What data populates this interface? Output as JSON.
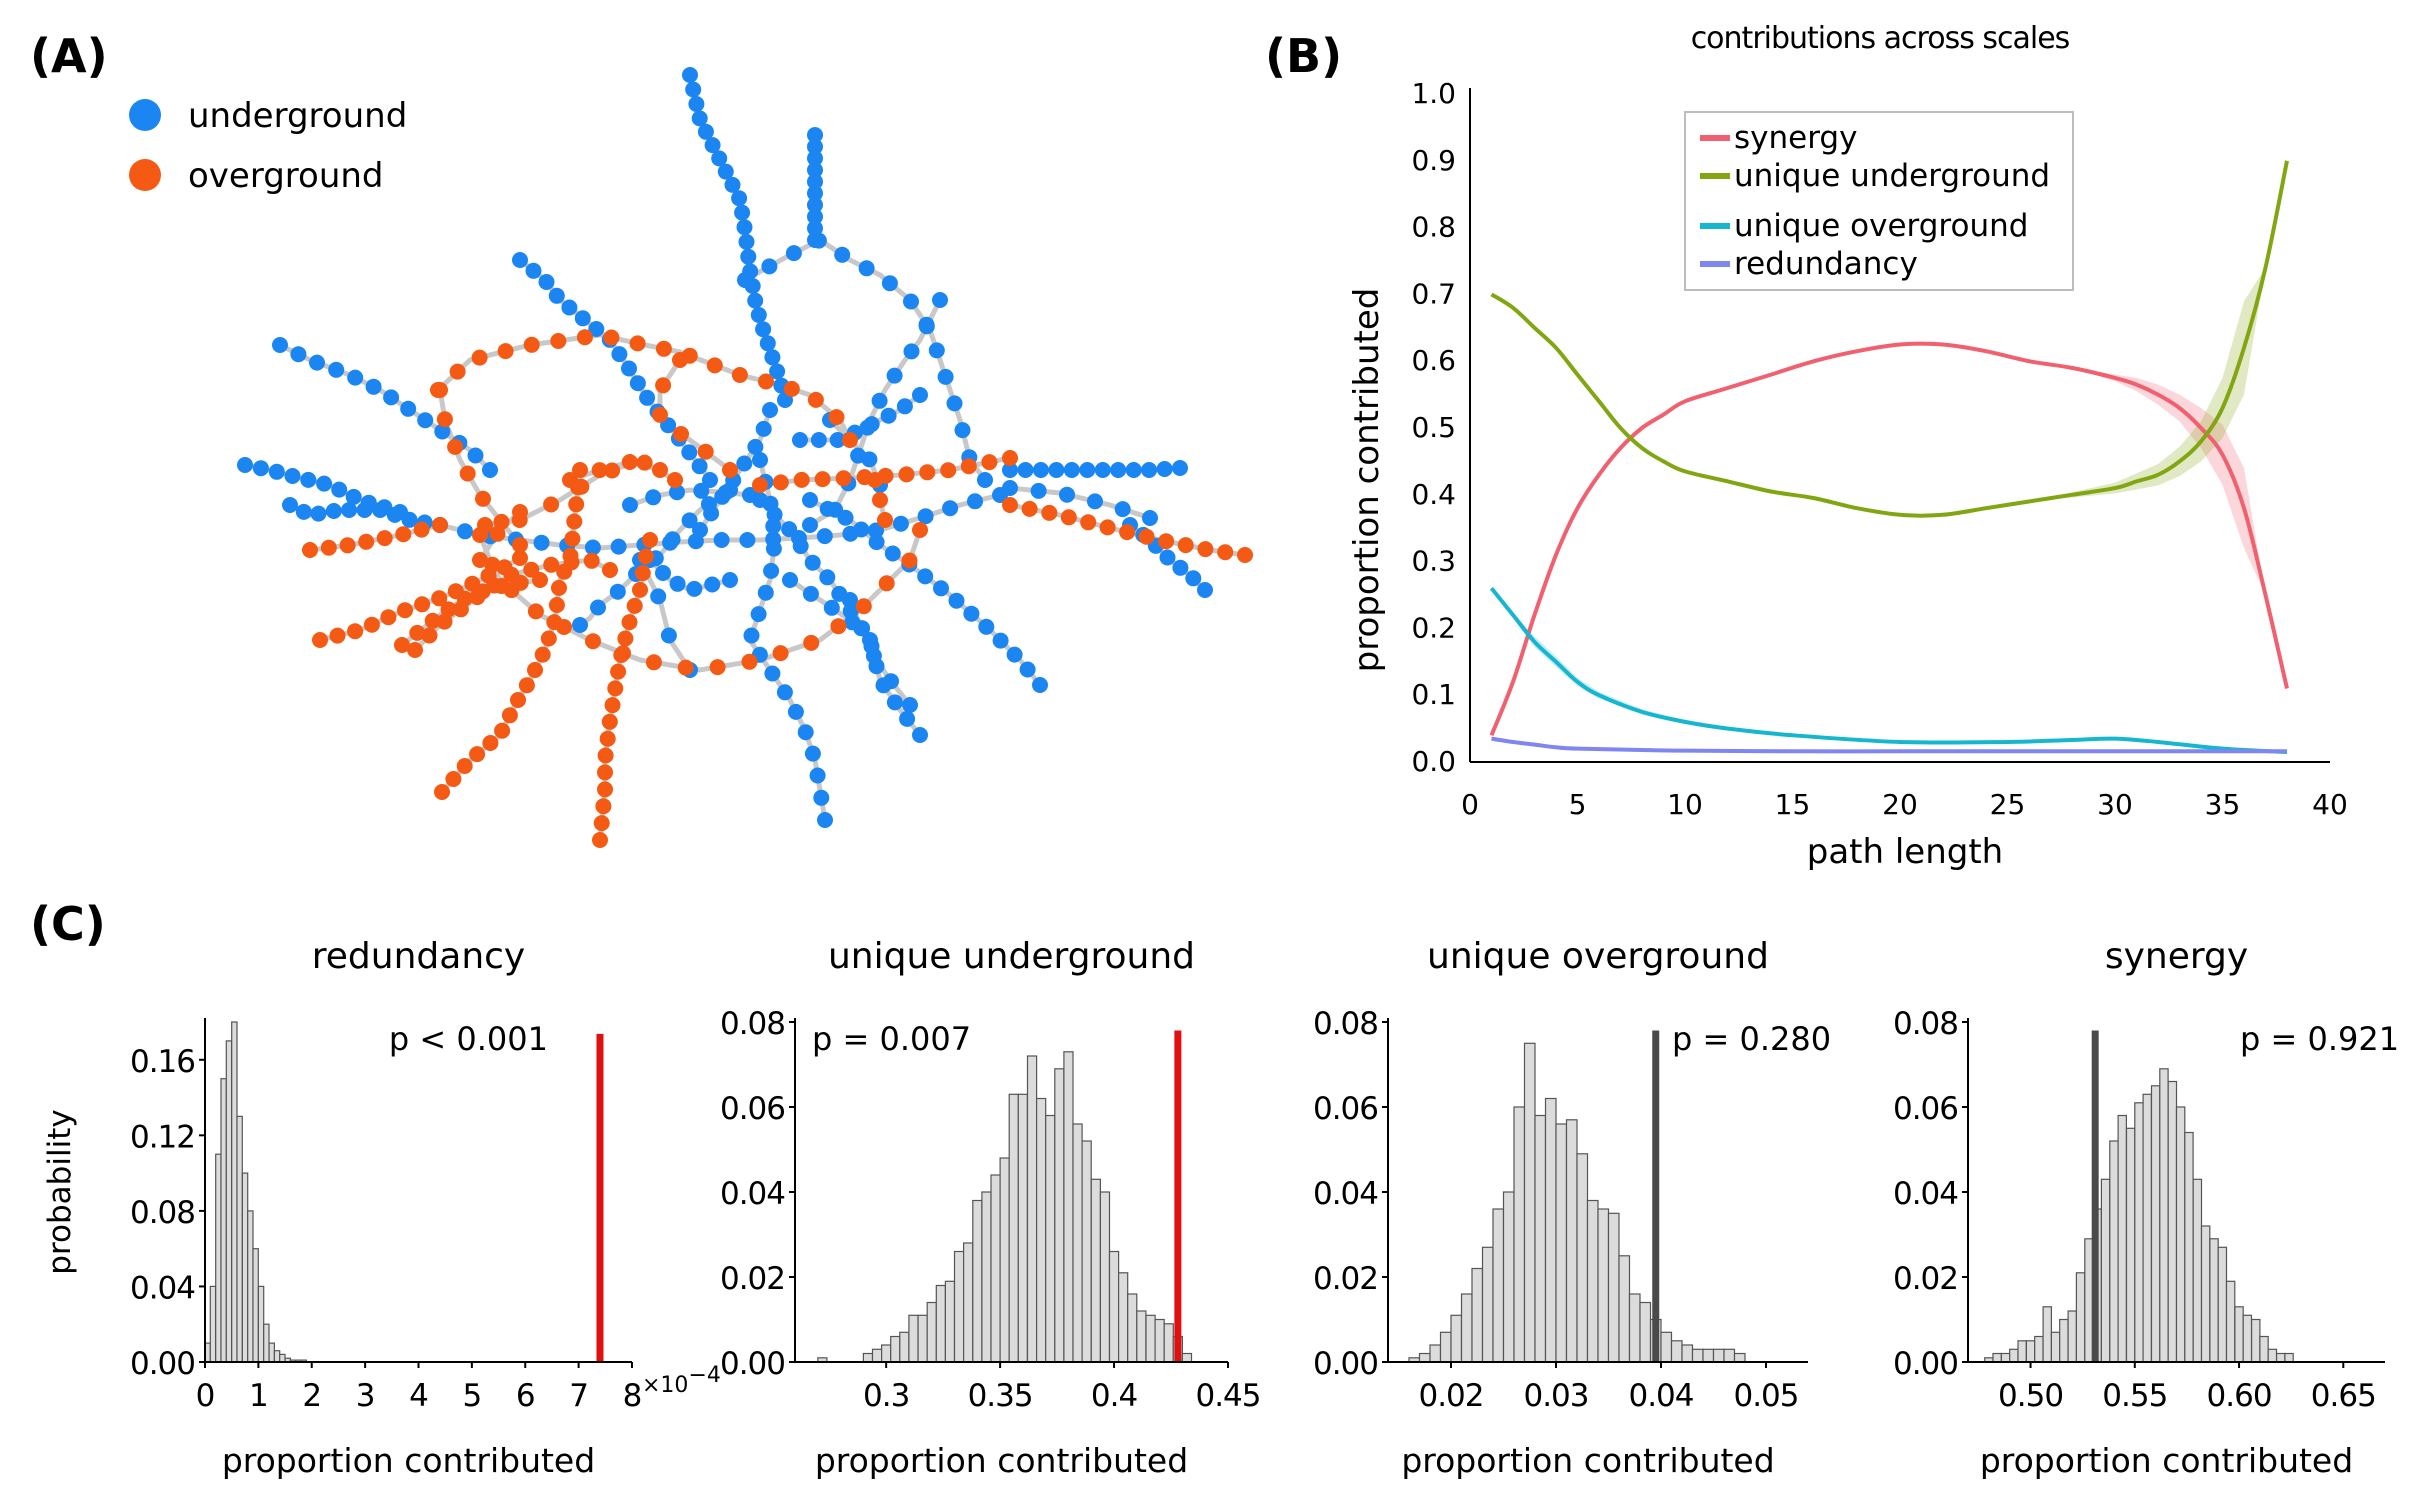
{
  "panels": {
    "a_label": "(A)",
    "b_label": "(B)",
    "c_label": "(C)"
  },
  "network": {
    "legend": [
      {
        "name": "underground",
        "color": "#1b86f2"
      },
      {
        "name": "overground",
        "color": "#f45a14"
      }
    ],
    "edge_color": "#c8c8c8"
  },
  "chart_data": [
    {
      "type": "line",
      "title": "contributions across scales",
      "xlabel": "path length",
      "ylabel": "proportion contributed",
      "xlim": [
        0,
        40
      ],
      "ylim": [
        0,
        1
      ],
      "xticks": [
        0,
        5,
        10,
        15,
        20,
        25,
        30,
        35,
        40
      ],
      "yticks": [
        "0.0",
        "0.1",
        "0.2",
        "0.3",
        "0.4",
        "0.5",
        "0.6",
        "0.7",
        "0.8",
        "0.9",
        "1.0"
      ],
      "legend_position": "top-right",
      "series": [
        {
          "name": "synergy",
          "color": "#f0606e",
          "x": [
            1,
            2,
            3,
            4,
            5,
            6,
            7,
            8,
            9,
            10,
            12,
            14,
            16,
            18,
            20,
            22,
            24,
            26,
            28,
            30,
            31,
            32,
            33,
            34,
            35,
            36,
            37,
            38
          ],
          "y": [
            0.04,
            0.12,
            0.22,
            0.31,
            0.38,
            0.43,
            0.47,
            0.5,
            0.52,
            0.54,
            0.56,
            0.58,
            0.6,
            0.615,
            0.625,
            0.625,
            0.615,
            0.6,
            0.59,
            0.575,
            0.565,
            0.55,
            0.53,
            0.5,
            0.46,
            0.38,
            0.25,
            0.11
          ],
          "band": [
            0,
            0,
            0,
            0,
            0,
            0,
            0,
            0,
            0,
            0,
            0,
            0,
            0,
            0,
            0,
            0,
            0,
            0,
            0,
            0.005,
            0.01,
            0.015,
            0.02,
            0.03,
            0.045,
            0.06,
            0,
            0
          ]
        },
        {
          "name": "unique underground",
          "color": "#82a612",
          "x": [
            1,
            2,
            3,
            4,
            5,
            6,
            7,
            8,
            9,
            10,
            12,
            14,
            16,
            18,
            20,
            22,
            24,
            26,
            28,
            30,
            31,
            32,
            33,
            34,
            35,
            36,
            37,
            38
          ],
          "y": [
            0.7,
            0.68,
            0.65,
            0.62,
            0.58,
            0.54,
            0.5,
            0.47,
            0.45,
            0.435,
            0.42,
            0.405,
            0.395,
            0.38,
            0.37,
            0.37,
            0.38,
            0.39,
            0.4,
            0.41,
            0.42,
            0.43,
            0.45,
            0.48,
            0.53,
            0.62,
            0.74,
            0.9
          ],
          "band": [
            0,
            0,
            0,
            0,
            0,
            0,
            0,
            0,
            0,
            0,
            0,
            0,
            0,
            0,
            0,
            0,
            0,
            0,
            0.004,
            0.008,
            0.012,
            0.016,
            0.022,
            0.03,
            0.045,
            0.07,
            0,
            0
          ]
        },
        {
          "name": "unique overground",
          "color": "#17b6cf",
          "x": [
            1,
            2,
            3,
            4,
            5,
            6,
            8,
            10,
            12,
            15,
            20,
            25,
            28,
            30,
            32,
            35,
            38
          ],
          "y": [
            0.26,
            0.22,
            0.18,
            0.15,
            0.12,
            0.1,
            0.075,
            0.06,
            0.05,
            0.04,
            0.03,
            0.03,
            0.033,
            0.035,
            0.03,
            0.02,
            0.015
          ],
          "band": [
            0,
            0.004,
            0.008,
            0.008,
            0.006,
            0.005,
            0.004,
            0.003,
            0.002,
            0,
            0,
            0,
            0,
            0,
            0,
            0,
            0
          ]
        },
        {
          "name": "redundancy",
          "color": "#7f86ef",
          "x": [
            1,
            2,
            3,
            4,
            5,
            8,
            10,
            15,
            20,
            25,
            30,
            35,
            38
          ],
          "y": [
            0.035,
            0.03,
            0.026,
            0.022,
            0.02,
            0.018,
            0.017,
            0.016,
            0.016,
            0.016,
            0.016,
            0.016,
            0.016
          ],
          "band": [
            0,
            0,
            0,
            0,
            0,
            0,
            0,
            0,
            0,
            0,
            0,
            0,
            0
          ]
        }
      ]
    },
    {
      "type": "bar",
      "title": "redundancy",
      "xlabel": "proportion contributed",
      "ylabel": "probability",
      "xlim": [
        0,
        8
      ],
      "ylim": [
        0,
        0.18
      ],
      "xticks": [
        "0",
        "1",
        "2",
        "3",
        "4",
        "5",
        "6",
        "7",
        "8"
      ],
      "yticks": [
        "0.00",
        "0.04",
        "0.08",
        "0.12",
        "0.16"
      ],
      "x_multiplier_label": "×10",
      "x_multiplier_exp": "−4",
      "bin_start": 0,
      "bin_width": 0.1,
      "values": [
        0.01,
        0.04,
        0.11,
        0.15,
        0.17,
        0.18,
        0.13,
        0.1,
        0.08,
        0.06,
        0.04,
        0.02,
        0.01,
        0.006,
        0.004,
        0.002,
        0.001,
        0.001,
        0.001
      ],
      "observed": 7.4,
      "observed_color": "#e01010",
      "p_text": "p < 0.001"
    },
    {
      "type": "bar",
      "title": "unique underground",
      "xlabel": "proportion contributed",
      "ylabel": "",
      "xlim": [
        0.26,
        0.45
      ],
      "ylim": [
        0,
        0.08
      ],
      "xticks": [
        "0.3",
        "0.35",
        "0.4",
        "0.45"
      ],
      "xtick_values": [
        0.3,
        0.35,
        0.4,
        0.45
      ],
      "yticks": [
        "0.00",
        "0.02",
        "0.04",
        "0.06",
        "0.08"
      ],
      "bin_start": 0.27,
      "bin_width": 0.004,
      "values": [
        0.001,
        0,
        0,
        0,
        0,
        0.002,
        0.003,
        0.004,
        0.006,
        0.007,
        0.011,
        0.011,
        0.014,
        0.018,
        0.019,
        0.026,
        0.028,
        0.038,
        0.04,
        0.044,
        0.048,
        0.063,
        0.063,
        0.072,
        0.062,
        0.058,
        0.069,
        0.073,
        0.056,
        0.052,
        0.043,
        0.04,
        0.026,
        0.021,
        0.016,
        0.012,
        0.011,
        0.01,
        0.009,
        0.006,
        0.002
      ],
      "observed": 0.428,
      "observed_color": "#e01010",
      "p_text": "p = 0.007"
    },
    {
      "type": "bar",
      "title": "unique overground",
      "xlabel": "proportion contributed",
      "ylabel": "",
      "xlim": [
        0.014,
        0.054
      ],
      "ylim": [
        0,
        0.08
      ],
      "xticks": [
        "0.02",
        "0.03",
        "0.04",
        "0.05"
      ],
      "xtick_values": [
        0.02,
        0.03,
        0.04,
        0.05
      ],
      "yticks": [
        "0.00",
        "0.02",
        "0.04",
        "0.06",
        "0.08"
      ],
      "bin_start": 0.016,
      "bin_width": 0.001,
      "values": [
        0.001,
        0.002,
        0.004,
        0.007,
        0.011,
        0.016,
        0.022,
        0.027,
        0.036,
        0.04,
        0.06,
        0.075,
        0.058,
        0.062,
        0.056,
        0.057,
        0.049,
        0.038,
        0.036,
        0.035,
        0.025,
        0.016,
        0.014,
        0.01,
        0.007,
        0.005,
        0.004,
        0.003,
        0.003,
        0.003,
        0.003,
        0.002
      ],
      "observed": 0.0395,
      "observed_color": "#4a4a4a",
      "p_text": "p = 0.280"
    },
    {
      "type": "bar",
      "title": "synergy",
      "xlabel": "proportion contributed",
      "ylabel": "",
      "xlim": [
        0.47,
        0.67
      ],
      "ylim": [
        0,
        0.08
      ],
      "xticks": [
        "0.50",
        "0.55",
        "0.60",
        "0.65"
      ],
      "xtick_values": [
        0.5,
        0.55,
        0.6,
        0.65
      ],
      "yticks": [
        "0.00",
        "0.02",
        "0.04",
        "0.06",
        "0.08"
      ],
      "bin_start": 0.478,
      "bin_width": 0.004,
      "values": [
        0.001,
        0.002,
        0.002,
        0.003,
        0.005,
        0.005,
        0.006,
        0.013,
        0.007,
        0.01,
        0.012,
        0.021,
        0.029,
        0.036,
        0.043,
        0.052,
        0.058,
        0.055,
        0.061,
        0.063,
        0.065,
        0.069,
        0.066,
        0.06,
        0.054,
        0.043,
        0.032,
        0.029,
        0.027,
        0.019,
        0.013,
        0.011,
        0.01,
        0.006,
        0.003,
        0.002,
        0.002
      ],
      "observed": 0.531,
      "observed_color": "#4a4a4a",
      "p_text": "p = 0.921"
    }
  ]
}
